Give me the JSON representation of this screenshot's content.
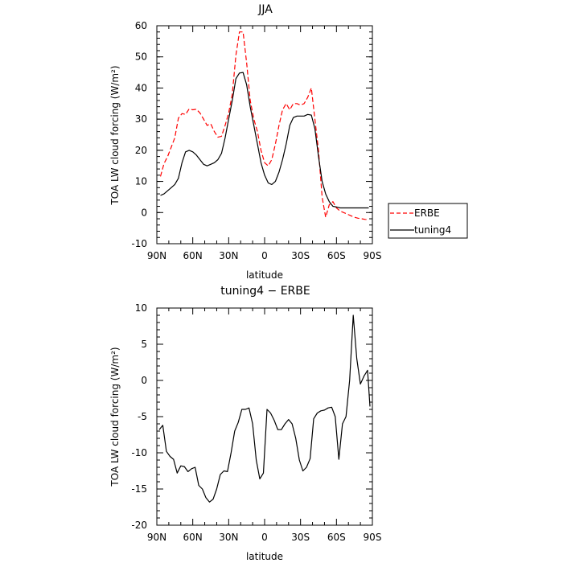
{
  "chart_data": [
    {
      "type": "line",
      "title": "JJA",
      "xlabel": "latitude",
      "ylabel": "TOA LW cloud forcing (W/m²)",
      "xticks": [
        "90N",
        "60N",
        "30N",
        "0",
        "30S",
        "60S",
        "90S"
      ],
      "xtick_values": [
        90,
        60,
        30,
        0,
        -30,
        -60,
        -90
      ],
      "xlim": [
        90,
        -90
      ],
      "ylim": [
        -10,
        60
      ],
      "yticks": [
        -10,
        0,
        10,
        20,
        30,
        40,
        50,
        60
      ],
      "legend": "right, outside plot",
      "series": [
        {
          "name": "ERBE",
          "color": "#ff0000",
          "dash": true,
          "x": [
            87,
            84,
            81,
            78,
            75,
            72,
            69,
            66,
            63,
            60,
            57,
            54,
            51,
            48,
            45,
            42,
            39,
            36,
            33,
            30,
            27,
            24,
            21,
            18,
            15,
            12,
            9,
            6,
            3,
            0,
            -3,
            -6,
            -9,
            -12,
            -15,
            -18,
            -21,
            -24,
            -27,
            -30,
            -33,
            -36,
            -39,
            -42,
            -45,
            -48,
            -51,
            -54,
            -57,
            -60,
            -63,
            -66,
            -69,
            -72,
            -75,
            -78,
            -81,
            -84,
            -87
          ],
          "y": [
            11.6,
            15.7,
            18,
            21,
            24,
            30.3,
            31.8,
            31.5,
            33.3,
            33,
            33.2,
            32,
            30,
            28,
            28.5,
            26,
            24.2,
            24.5,
            28,
            32,
            38,
            50.5,
            58,
            58,
            48,
            36,
            30,
            26,
            20,
            16,
            15,
            17,
            22,
            28,
            33,
            35,
            33,
            35,
            35,
            34.5,
            35,
            37,
            40,
            30,
            20,
            5,
            -1.5,
            2.5,
            3.5,
            1.5,
            0.5,
            0,
            -0.5,
            -1,
            -1.5,
            -1.8,
            -2,
            -2.2,
            -2.3
          ]
        },
        {
          "name": "tuning4",
          "color": "#000000",
          "dash": false,
          "x": [
            87,
            84,
            81,
            78,
            75,
            72,
            69,
            66,
            63,
            60,
            57,
            54,
            51,
            48,
            45,
            42,
            39,
            36,
            33,
            30,
            27,
            24,
            21,
            18,
            15,
            12,
            9,
            6,
            3,
            0,
            -3,
            -6,
            -9,
            -12,
            -15,
            -18,
            -21,
            -24,
            -27,
            -30,
            -33,
            -36,
            -39,
            -42,
            -45,
            -48,
            -51,
            -54,
            -57,
            -60,
            -63,
            -66,
            -69,
            -72,
            -75,
            -78,
            -81,
            -84,
            -87
          ],
          "y": [
            5.5,
            6,
            7,
            8,
            9,
            11,
            16,
            19.5,
            20,
            19.5,
            18.5,
            17,
            15.5,
            15,
            15.5,
            16,
            17,
            19,
            24,
            30,
            36,
            43,
            44.8,
            45,
            41,
            34,
            28,
            22,
            16,
            12,
            9.5,
            9,
            10,
            13,
            17,
            22,
            28,
            30.5,
            31,
            31,
            31,
            31.5,
            31.3,
            27,
            18,
            10,
            6,
            3.5,
            2,
            1.8,
            1.5,
            1.5,
            1.5,
            1.5,
            1.5,
            1.5,
            1.5,
            1.5,
            1.5
          ]
        }
      ]
    },
    {
      "type": "line",
      "title": "tuning4 − ERBE",
      "xlabel": "latitude",
      "ylabel": "TOA LW cloud forcing (W/m²)",
      "xticks": [
        "90N",
        "60N",
        "30N",
        "0",
        "30S",
        "60S",
        "90S"
      ],
      "xtick_values": [
        90,
        60,
        30,
        0,
        -30,
        -60,
        -90
      ],
      "xlim": [
        90,
        -90
      ],
      "ylim": [
        -20,
        10
      ],
      "yticks": [
        -20,
        -15,
        -10,
        -5,
        0,
        5,
        10
      ],
      "series": [
        {
          "color": "#000000",
          "x": [
            88,
            85,
            82,
            79,
            76,
            73,
            70,
            67,
            64,
            61,
            58,
            55,
            52,
            49,
            46,
            43,
            40,
            37,
            34,
            31,
            28,
            25,
            22,
            19,
            16,
            13,
            10,
            7,
            4,
            1,
            -2,
            -5,
            -8,
            -11,
            -14,
            -17,
            -20,
            -23,
            -26,
            -29,
            -32,
            -35,
            -38,
            -41,
            -44,
            -47,
            -50,
            -53,
            -56,
            -59,
            -62,
            -65,
            -68,
            -71,
            -74,
            -77,
            -80,
            -83,
            -86,
            -88
          ],
          "y": [
            -6.8,
            -6.2,
            -9.8,
            -10.5,
            -10.9,
            -12.8,
            -11.8,
            -11.9,
            -12.6,
            -12.2,
            -12,
            -14.5,
            -15,
            -16.2,
            -16.8,
            -16.4,
            -15,
            -13,
            -12.5,
            -12.6,
            -10,
            -7,
            -5.8,
            -4,
            -4,
            -3.8,
            -6,
            -11,
            -13.6,
            -12.8,
            -4,
            -4.5,
            -5.5,
            -6.8,
            -6.8,
            -6,
            -5.4,
            -6,
            -8,
            -11,
            -12.5,
            -12,
            -10.8,
            -5.3,
            -4.5,
            -4.2,
            -4.1,
            -3.8,
            -3.7,
            -5,
            -10.9,
            -6,
            -5,
            0,
            9,
            3,
            -0.5,
            0.6,
            1.4,
            -3.6
          ]
        }
      ]
    }
  ]
}
